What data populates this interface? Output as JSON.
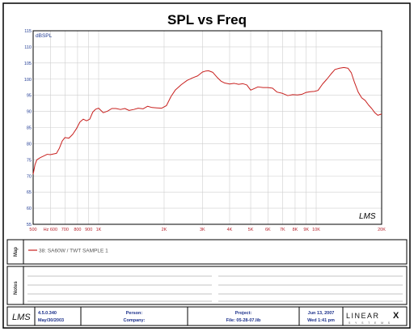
{
  "header": {
    "title": "SPL vs Freq"
  },
  "chart_data": {
    "type": "line",
    "title": "SPL vs Freq",
    "ylabel": "dBSPL",
    "xlabel": "",
    "x_scale": "log",
    "xlim": [
      500,
      20000
    ],
    "ylim": [
      55,
      115
    ],
    "grid": true,
    "x_ticks": [
      500,
      600,
      700,
      800,
      900,
      1000,
      2000,
      3000,
      4000,
      5000,
      6000,
      7000,
      8000,
      9000,
      10000,
      20000
    ],
    "x_tick_labels": [
      "500",
      "Hz 600",
      "700",
      "800",
      "900",
      "1K",
      "2K",
      "3K",
      "4K",
      "5K",
      "6K",
      "7K",
      "8K",
      "9K",
      "10K",
      "20K"
    ],
    "y_ticks": [
      55,
      60,
      65,
      70,
      75,
      80,
      85,
      90,
      95,
      100,
      105,
      110,
      115
    ],
    "y_tick_labels": [
      "55",
      "60",
      "65",
      "70",
      "75",
      "80",
      "85",
      "90",
      "95",
      "100",
      "105",
      "110",
      "115"
    ],
    "series": [
      {
        "name": "38: SA60W / TWT SAMPLE 1",
        "color": "#c8201e",
        "x": [
          500,
          510,
          520,
          540,
          560,
          580,
          600,
          620,
          640,
          660,
          680,
          700,
          730,
          760,
          790,
          820,
          850,
          880,
          910,
          940,
          970,
          1000,
          1050,
          1100,
          1150,
          1200,
          1260,
          1320,
          1380,
          1450,
          1520,
          1600,
          1680,
          1760,
          1850,
          1950,
          2050,
          2150,
          2250,
          2400,
          2550,
          2700,
          2850,
          3000,
          3100,
          3200,
          3350,
          3500,
          3650,
          3800,
          4000,
          4200,
          4400,
          4600,
          4800,
          5000,
          5200,
          5400,
          5700,
          6000,
          6300,
          6600,
          7000,
          7400,
          7800,
          8200,
          8600,
          9000,
          9400,
          9800,
          10200,
          10700,
          11200,
          11700,
          12200,
          12800,
          13400,
          14000,
          14500,
          15000,
          15600,
          16200,
          16800,
          17400,
          18000,
          18600,
          19200,
          20000
        ],
        "values": [
          70.5,
          73.5,
          75.0,
          75.7,
          76.2,
          76.7,
          76.6,
          76.8,
          77.0,
          78.6,
          80.8,
          81.9,
          81.7,
          82.9,
          84.6,
          86.7,
          87.6,
          87.1,
          87.6,
          89.8,
          90.7,
          91.0,
          89.6,
          90.1,
          90.9,
          90.9,
          90.6,
          90.9,
          90.3,
          90.6,
          91.0,
          90.8,
          91.6,
          91.2,
          91.1,
          91.0,
          91.8,
          94.6,
          96.6,
          98.3,
          99.6,
          100.4,
          101.0,
          102.2,
          102.5,
          102.6,
          102.1,
          100.6,
          99.4,
          98.8,
          98.5,
          98.7,
          98.4,
          98.6,
          98.2,
          96.6,
          97.1,
          97.6,
          97.4,
          97.4,
          97.2,
          96.0,
          95.6,
          94.9,
          95.2,
          95.1,
          95.3,
          95.9,
          96.1,
          96.2,
          96.5,
          98.5,
          100.0,
          101.6,
          103.0,
          103.4,
          103.6,
          103.4,
          102.0,
          99.0,
          96.0,
          94.2,
          93.4,
          92.0,
          90.9,
          89.6,
          88.8,
          89.2
        ]
      }
    ]
  },
  "legend": {
    "label": "Map",
    "entry": "38: SA60W / TWT SAMPLE 1"
  },
  "notes": {
    "label": "Notes"
  },
  "watermark": "LMS",
  "footer": {
    "logo": "LMS",
    "version": "4.5.0.340",
    "version_date": "May/30/2003",
    "person_label": "Person:",
    "company_label": "Company:",
    "project_label": "Project:",
    "file_label": "File: 05-28-07.lib",
    "date": "Jun 13, 2007",
    "time": "Wed  1:41 pm",
    "brand": "LINEAR",
    "brand_x": "X",
    "brand_sub": "S Y S T E M S"
  },
  "colors": {
    "curve": "#c8201e",
    "tick_label": "#b5222c",
    "axis_label": "#1f3a93",
    "footer_text": "#1a2f8a",
    "grid": "#cfcfcf"
  }
}
